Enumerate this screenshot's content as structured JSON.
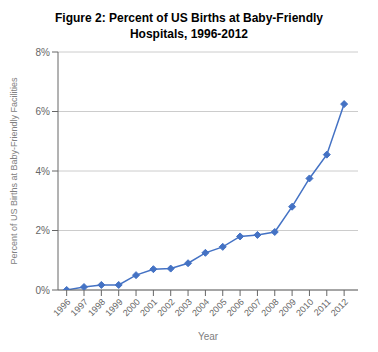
{
  "chart_data": {
    "type": "line",
    "title": "Figure 2: Percent of US Births at Baby-Friendly\nHospitals, 1996-2012",
    "xlabel": "Year",
    "ylabel": "Percent of US Births at Baby-Friendly Facilities",
    "x": [
      1996,
      1997,
      1998,
      1999,
      2000,
      2001,
      2002,
      2003,
      2004,
      2005,
      2006,
      2007,
      2008,
      2009,
      2010,
      2011,
      2012
    ],
    "values": [
      0.002,
      0.1,
      0.17,
      0.17,
      0.5,
      0.7,
      0.72,
      0.9,
      1.25,
      1.45,
      1.8,
      1.85,
      1.95,
      2.8,
      3.75,
      4.55,
      6.25
    ],
    "color": "#4472C4",
    "marker": "diamond",
    "xlim": [
      1995.5,
      2012.8
    ],
    "xticks": [
      1996,
      1997,
      1998,
      1999,
      2000,
      2001,
      2002,
      2003,
      2004,
      2005,
      2006,
      2007,
      2008,
      2009,
      2010,
      2011,
      2012
    ],
    "ylim": [
      0,
      8
    ],
    "yticks": [
      {
        "value": 0,
        "label": "0%"
      },
      {
        "value": 2,
        "label": "2%"
      },
      {
        "value": 4,
        "label": "4%"
      },
      {
        "value": 6,
        "label": "6%"
      },
      {
        "value": 8,
        "label": "8%"
      }
    ],
    "grid": "y"
  }
}
